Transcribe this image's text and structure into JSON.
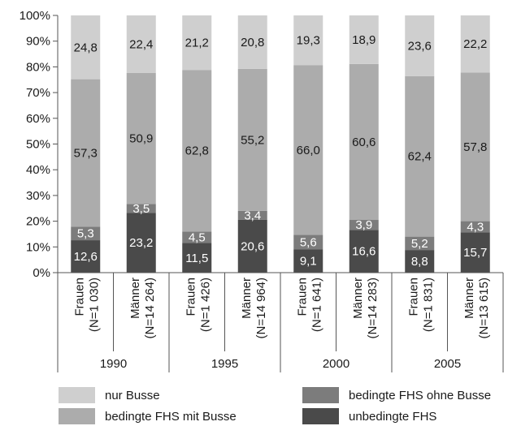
{
  "chart_data": {
    "type": "bar",
    "stacked": true,
    "percent": true,
    "groups": [
      {
        "label": "1990",
        "categories": [
          "Frauen (N=1 030)",
          "Männer (N=14 264)"
        ]
      },
      {
        "label": "1995",
        "categories": [
          "Frauen (N=1 426)",
          "Männer (N=14 964)"
        ]
      },
      {
        "label": "2000",
        "categories": [
          "Frauen (N=1 641)",
          "Männer (N=14 283)"
        ]
      },
      {
        "label": "2005",
        "categories": [
          "Frauen (N=1 831)",
          "Männer (N=13 615)"
        ]
      }
    ],
    "bars": [
      {
        "line1": "Frauen",
        "line2": "(N=1 030)"
      },
      {
        "line1": "Männer",
        "line2": "(N=14 264)"
      },
      {
        "line1": "Frauen",
        "line2": "(N=1 426)"
      },
      {
        "line1": "Männer",
        "line2": "(N=14 964)"
      },
      {
        "line1": "Frauen",
        "line2": "(N=1 641)"
      },
      {
        "line1": "Männer",
        "line2": "(N=14 283)"
      },
      {
        "line1": "Frauen",
        "line2": "(N=1 831)"
      },
      {
        "line1": "Männer",
        "line2": "(N=13 615)"
      }
    ],
    "series": [
      {
        "name": "unbedingte FHS",
        "color": "#4a4a4a",
        "values": [
          12.6,
          23.2,
          11.5,
          20.6,
          9.1,
          16.6,
          8.8,
          15.7
        ],
        "labels": [
          "12,6",
          "23,2",
          "11,5",
          "20,6",
          "9,1",
          "16,6",
          "8,8",
          "15,7"
        ]
      },
      {
        "name": "bedingte FHS ohne Busse",
        "color": "#7c7c7c",
        "values": [
          5.3,
          3.5,
          4.5,
          3.4,
          5.6,
          3.9,
          5.2,
          4.3
        ],
        "labels": [
          "5,3",
          "3,5",
          "4,5",
          "3,4",
          "5,6",
          "3,9",
          "5,2",
          "4,3"
        ]
      },
      {
        "name": "bedingte FHS mit Busse",
        "color": "#acacac",
        "values": [
          57.3,
          50.9,
          62.8,
          55.2,
          66.0,
          60.6,
          62.4,
          57.8
        ],
        "labels": [
          "57,3",
          "50,9",
          "62,8",
          "55,2",
          "66,0",
          "60,6",
          "62,4",
          "57,8"
        ]
      },
      {
        "name": "nur Busse",
        "color": "#cfcfcf",
        "values": [
          24.8,
          22.4,
          21.2,
          20.8,
          19.3,
          18.9,
          23.6,
          22.2
        ],
        "labels": [
          "24,8",
          "22,4",
          "21,2",
          "20,8",
          "19,3",
          "18,9",
          "23,6",
          "22,2"
        ]
      }
    ],
    "ylim": [
      0,
      100
    ],
    "yticks": [
      "0%",
      "10%",
      "20%",
      "30%",
      "40%",
      "50%",
      "60%",
      "70%",
      "80%",
      "90%",
      "100%"
    ],
    "grid": false,
    "legend_position": "bottom",
    "legend": [
      {
        "name": "nur Busse",
        "color": "#cfcfcf"
      },
      {
        "name": "bedingte FHS ohne Busse",
        "color": "#7c7c7c"
      },
      {
        "name": "bedingte FHS mit Busse",
        "color": "#acacac"
      },
      {
        "name": "unbedingte FHS",
        "color": "#4a4a4a"
      }
    ]
  }
}
